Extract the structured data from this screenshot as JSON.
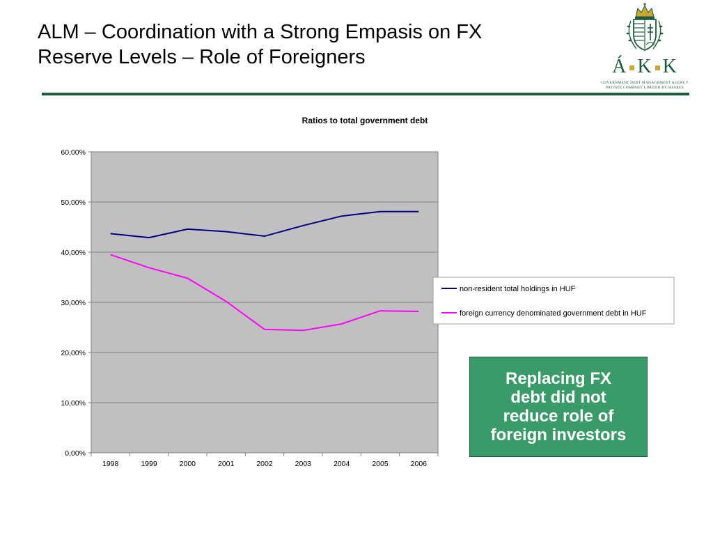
{
  "slide": {
    "title_line1": "ALM – Coordination with a Strong Empasis on FX",
    "title_line2": "Reserve Levels – Role of Foreigners"
  },
  "logo": {
    "main": "Á▪K▪K",
    "main_parts": [
      "Á",
      "K",
      "K"
    ],
    "subtitle_line1": "GOVERNMENT DEBT MANAGEMENT AGENCY",
    "subtitle_line2": "PRIVATE COMPANY LIMITED BY SHARES",
    "icon": "hungarian-coat-of-arms-icon"
  },
  "callout": {
    "text": "Replacing FX\ndebt did not\nreduce role of\nforeign investors"
  },
  "colors": {
    "brand_green": "#1e5a3c",
    "callout_green": "#3a9a68",
    "plot_bg": "#c0c0c0",
    "series_1": "#000080",
    "series_2": "#ff00ff",
    "logo_gold": "#c8a833"
  },
  "chart_data": {
    "type": "line",
    "title": "Ratios to total government debt",
    "categories": [
      "1998",
      "1999",
      "2000",
      "2001",
      "2002",
      "2003",
      "2004",
      "2005",
      "2006"
    ],
    "series": [
      {
        "name": "non-resident total holdings in HUF",
        "color": "#000080",
        "values": [
          43.7,
          42.9,
          44.6,
          44.1,
          43.2,
          45.3,
          47.2,
          48.1,
          48.1
        ]
      },
      {
        "name": "foreign currency denominated government debt in HUF",
        "color": "#ff00ff",
        "values": [
          39.5,
          36.9,
          34.8,
          30.2,
          24.6,
          24.4,
          25.7,
          28.3,
          28.2
        ]
      }
    ],
    "yticks": [
      "0,00%",
      "10,00%",
      "20,00%",
      "30,00%",
      "40,00%",
      "50,00%",
      "60,00%"
    ],
    "ylim": [
      0,
      60
    ],
    "grid": true,
    "legend_position": "right"
  }
}
